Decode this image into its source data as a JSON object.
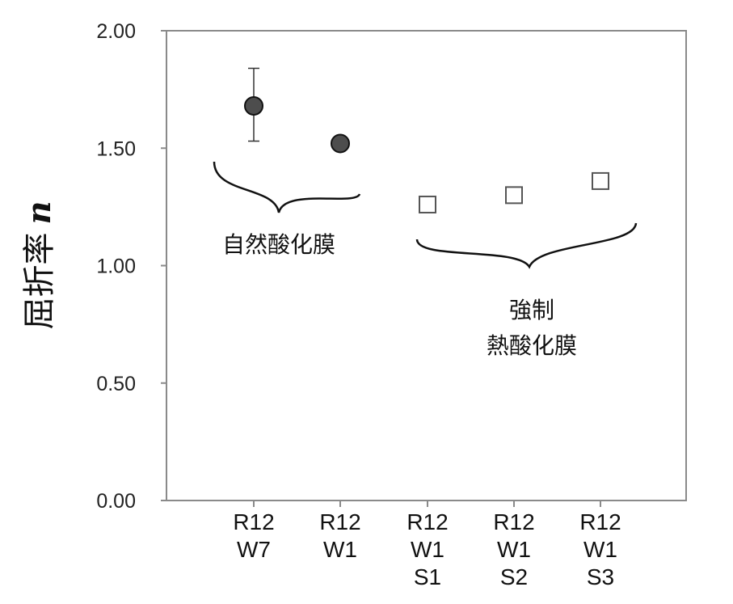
{
  "chart_data": {
    "type": "scatter",
    "title": "",
    "ylabel": "屈折率",
    "ylabel_symbol": "n",
    "ylim": [
      0,
      2
    ],
    "yticks": [
      "0.00",
      "0.50",
      "1.00",
      "1.50",
      "2.00"
    ],
    "ytick_values": [
      0,
      0.5,
      1.0,
      1.5,
      2.0
    ],
    "grid": false,
    "categories": [
      [
        "R12",
        "W7"
      ],
      [
        "R12",
        "W1"
      ],
      [
        "R12",
        "W1",
        "S1"
      ],
      [
        "R12",
        "W1",
        "S2"
      ],
      [
        "R12",
        "W1",
        "S3"
      ]
    ],
    "series": [
      {
        "marker": "filled-circle",
        "color": "#4d4d4d",
        "points": [
          {
            "category_index": 0,
            "y": 1.68,
            "yerr_low": 1.53,
            "yerr_high": 1.84
          },
          {
            "category_index": 1,
            "y": 1.52,
            "yerr_low": 1.52,
            "yerr_high": 1.52
          }
        ]
      },
      {
        "marker": "open-square",
        "color": "#555555",
        "points": [
          {
            "category_index": 2,
            "y": 1.26,
            "yerr_low": 1.24,
            "yerr_high": 1.29
          },
          {
            "category_index": 3,
            "y": 1.3,
            "yerr_low": 1.28,
            "yerr_high": 1.32
          },
          {
            "category_index": 4,
            "y": 1.36,
            "yerr_low": 1.35,
            "yerr_high": 1.38
          }
        ]
      }
    ],
    "annotations": [
      {
        "group": "natural",
        "lines": [
          "自然酸化膜"
        ]
      },
      {
        "group": "forced",
        "lines": [
          "強制",
          "熱酸化膜"
        ]
      }
    ]
  }
}
